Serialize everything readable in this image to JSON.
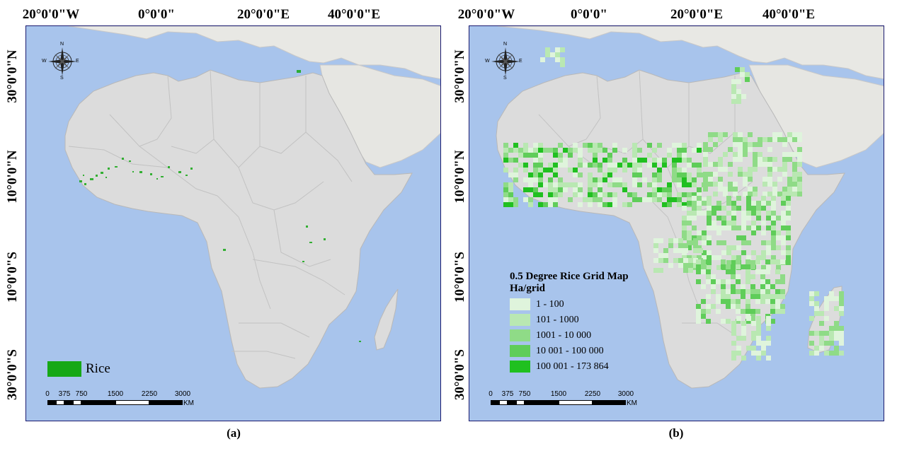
{
  "top_labels": [
    "20°0'0\"W",
    "0°0'0\"",
    "20°0'0\"E",
    "40°0'0\"E"
  ],
  "side_labels": [
    "30°0'0\"N",
    "10°0'0\"N",
    "10°0'0\"S",
    "30°0'0\"S"
  ],
  "panels": [
    {
      "caption": "(a)"
    },
    {
      "caption": "(b)"
    }
  ],
  "compass": {
    "n": "N",
    "s": "S",
    "e": "E",
    "w": "W"
  },
  "legend_a": {
    "label": "Rice",
    "color": "#16a816"
  },
  "legend_b": {
    "title": "0.5 Degree Rice Grid Map",
    "subtitle": "Ha/grid",
    "classes": [
      {
        "label": "1 - 100",
        "color": "#dff4dc"
      },
      {
        "label": "101 - 1000",
        "color": "#b9e8b2"
      },
      {
        "label": "1001 - 10 000",
        "color": "#8fdb87"
      },
      {
        "label": "10 001 - 100 000",
        "color": "#5fcd59"
      },
      {
        "label": "100 001 - 173 864",
        "color": "#20c020"
      }
    ]
  },
  "scale_bar": {
    "ticks": [
      "0",
      "375",
      "750",
      "1500",
      "2250",
      "3000"
    ],
    "unit": "KM"
  },
  "colors": {
    "ocean": "#a8c4ec",
    "land": "#dcdcdc",
    "border": "#c4c4c4"
  }
}
